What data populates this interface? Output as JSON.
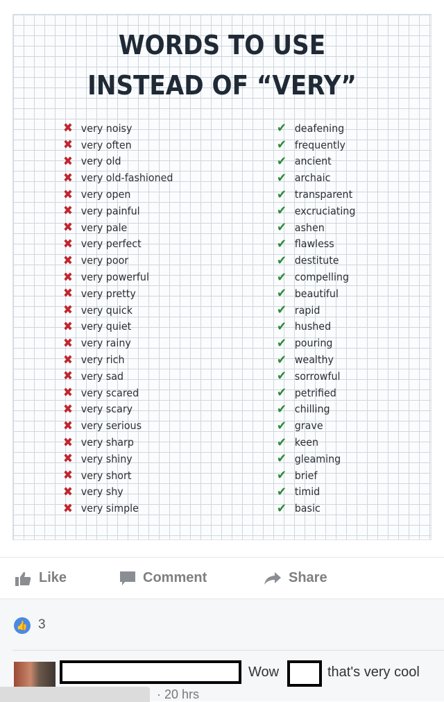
{
  "poster": {
    "title_line1": "WORDS TO USE",
    "title_line2": "INSTEAD OF “VERY”",
    "wrong_icon": "cross-icon",
    "right_icon": "check-icon",
    "wrong_color": "#c0262d",
    "right_color": "#2e8a3a",
    "pairs": [
      [
        "very noisy",
        "deafening"
      ],
      [
        "very often",
        "frequently"
      ],
      [
        "very old",
        "ancient"
      ],
      [
        "very old-fashioned",
        "archaic"
      ],
      [
        "very open",
        "transparent"
      ],
      [
        "very painful",
        "excruciating"
      ],
      [
        "very pale",
        "ashen"
      ],
      [
        "very perfect",
        "flawless"
      ],
      [
        "very poor",
        "destitute"
      ],
      [
        "very powerful",
        "compelling"
      ],
      [
        "very pretty",
        "beautiful"
      ],
      [
        "very quick",
        "rapid"
      ],
      [
        "very quiet",
        "hushed"
      ],
      [
        "very rainy",
        "pouring"
      ],
      [
        "very rich",
        "wealthy"
      ],
      [
        "very sad",
        "sorrowful"
      ],
      [
        "very scared",
        "petrified"
      ],
      [
        "very scary",
        "chilling"
      ],
      [
        "very serious",
        "grave"
      ],
      [
        "very sharp",
        "keen"
      ],
      [
        "very shiny",
        "gleaming"
      ],
      [
        "very short",
        "brief"
      ],
      [
        "very shy",
        "timid"
      ],
      [
        "very simple",
        "basic"
      ]
    ]
  },
  "actions": {
    "like": "Like",
    "comment": "Comment",
    "share": "Share"
  },
  "reactions": {
    "count": "3"
  },
  "comment": {
    "text_before": "Wow",
    "text_after": "that's very cool",
    "time": "· 20 hrs"
  }
}
